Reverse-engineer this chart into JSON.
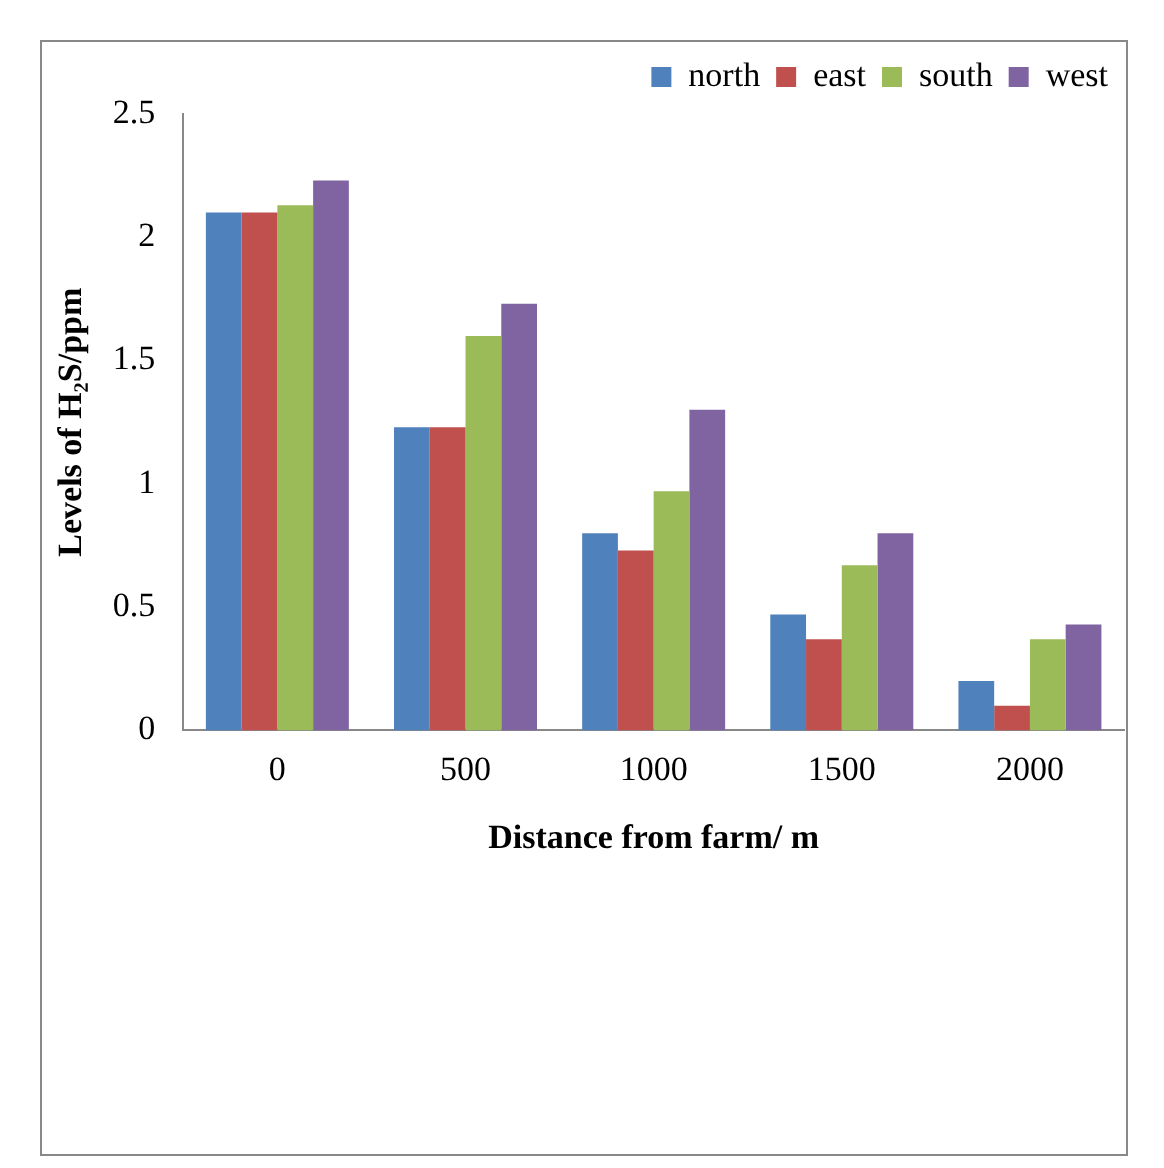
{
  "chart_data": {
    "type": "bar",
    "xlabel": "Distance from farm/ m",
    "ylabel": "Levels of H₂S/ppm",
    "categories": [
      "0",
      "500",
      "1000",
      "1500",
      "2000"
    ],
    "series": [
      {
        "name": "north",
        "color": "#4f81bd",
        "values": [
          2.1,
          1.23,
          0.8,
          0.47,
          0.2
        ]
      },
      {
        "name": "east",
        "color": "#c0504d",
        "values": [
          2.1,
          1.23,
          0.73,
          0.37,
          0.1
        ]
      },
      {
        "name": "south",
        "color": "#9bbb59",
        "values": [
          2.13,
          1.6,
          0.97,
          0.67,
          0.37
        ]
      },
      {
        "name": "west",
        "color": "#8064a2",
        "values": [
          2.23,
          1.73,
          1.3,
          0.8,
          0.43
        ]
      }
    ],
    "ylim": [
      0,
      2.5
    ],
    "yticks": [
      0,
      0.5,
      1,
      1.5,
      2,
      2.5
    ],
    "grid": false,
    "legend": "top right"
  }
}
